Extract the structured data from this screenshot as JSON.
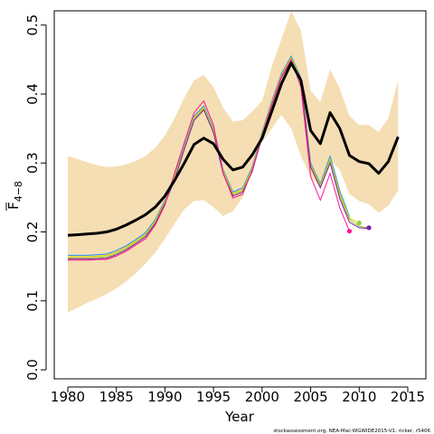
{
  "chart_data": {
    "type": "line",
    "xlabel": "Year",
    "ylabel_main": "F",
    "ylabel_sub": "4−8",
    "credit": "stockassessment.org, NEA-Mac-WGWIDE2015-V1: ricker, r5406",
    "xlim": [
      1980,
      2015
    ],
    "ylim": [
      0.0,
      0.52
    ],
    "x_ticks": [
      1980,
      1985,
      1990,
      1995,
      2000,
      2005,
      2010,
      2015
    ],
    "x_tick_labels": [
      "1980",
      "1985",
      "1990",
      "1995",
      "2000",
      "2005",
      "2010",
      "2015"
    ],
    "y_ticks": [
      0.0,
      0.1,
      0.2,
      0.3,
      0.4,
      0.5
    ],
    "y_tick_labels": [
      "0.0",
      "0.1",
      "0.2",
      "0.3",
      "0.4",
      "0.5"
    ],
    "grid": false,
    "colors": {
      "band": "#f5deb3",
      "main": "#000000",
      "retro": [
        "#1e90ff",
        "#e0d000",
        "#9acd32",
        "#7b1fa2",
        "#ff1493"
      ]
    },
    "x": [
      1980,
      1981,
      1982,
      1983,
      1984,
      1985,
      1986,
      1987,
      1988,
      1989,
      1990,
      1991,
      1992,
      1993,
      1994,
      1995,
      1996,
      1997,
      1998,
      1999,
      2000,
      2001,
      2002,
      2003,
      2004,
      2005,
      2006,
      2007,
      2008,
      2009,
      2010,
      2011,
      2012,
      2013,
      2014
    ],
    "band_lower": [
      0.083,
      0.09,
      0.097,
      0.103,
      0.11,
      0.118,
      0.128,
      0.14,
      0.154,
      0.17,
      0.19,
      0.212,
      0.233,
      0.245,
      0.246,
      0.236,
      0.223,
      0.23,
      0.25,
      0.29,
      0.33,
      0.35,
      0.37,
      0.35,
      0.31,
      0.28,
      0.265,
      0.305,
      0.29,
      0.255,
      0.245,
      0.24,
      0.228,
      0.238,
      0.26
    ],
    "band_upper": [
      0.31,
      0.306,
      0.301,
      0.297,
      0.294,
      0.295,
      0.298,
      0.303,
      0.31,
      0.322,
      0.34,
      0.365,
      0.395,
      0.42,
      0.428,
      0.41,
      0.38,
      0.36,
      0.362,
      0.375,
      0.39,
      0.44,
      0.48,
      0.52,
      0.492,
      0.405,
      0.388,
      0.436,
      0.408,
      0.368,
      0.355,
      0.355,
      0.345,
      0.365,
      0.42
    ],
    "series": [
      {
        "values": [
          0.195,
          0.196,
          0.197,
          0.198,
          0.2,
          0.204,
          0.21,
          0.217,
          0.225,
          0.236,
          0.252,
          0.275,
          0.3,
          0.327,
          0.336,
          0.328,
          0.305,
          0.29,
          0.294,
          0.312,
          0.336,
          0.375,
          0.415,
          0.445,
          0.42,
          0.347,
          0.328,
          0.373,
          0.35,
          0.311,
          0.302,
          0.299,
          0.285,
          0.302,
          0.338
        ]
      },
      {
        "values": [
          0.166,
          0.166,
          0.166,
          0.167,
          0.168,
          0.173,
          0.18,
          0.189,
          0.199,
          0.218,
          0.246,
          0.283,
          0.325,
          0.368,
          0.383,
          0.35,
          0.29,
          0.258,
          0.264,
          0.295,
          0.345,
          0.39,
          0.43,
          0.455,
          0.424,
          0.3,
          0.27,
          0.31,
          0.26,
          0.222,
          null,
          null,
          null,
          null,
          null
        ]
      },
      {
        "values": [
          0.164,
          0.164,
          0.164,
          0.165,
          0.166,
          0.171,
          0.178,
          0.187,
          0.197,
          0.216,
          0.244,
          0.281,
          0.323,
          0.366,
          0.381,
          0.348,
          0.288,
          0.256,
          0.262,
          0.293,
          0.343,
          0.388,
          0.428,
          0.453,
          0.422,
          0.298,
          0.268,
          0.306,
          0.256,
          0.22,
          0.213,
          null,
          null,
          null,
          null
        ]
      },
      {
        "values": [
          0.162,
          0.162,
          0.162,
          0.163,
          0.164,
          0.169,
          0.176,
          0.185,
          0.195,
          0.214,
          0.242,
          0.279,
          0.321,
          0.364,
          0.379,
          0.346,
          0.286,
          0.254,
          0.26,
          0.291,
          0.341,
          0.386,
          0.426,
          0.451,
          0.42,
          0.296,
          0.266,
          0.303,
          0.252,
          0.218,
          0.208,
          0.206,
          null,
          null,
          null
        ]
      },
      {
        "values": [
          0.161,
          0.161,
          0.161,
          0.161,
          0.162,
          0.167,
          0.174,
          0.183,
          0.193,
          0.212,
          0.241,
          0.276,
          0.32,
          0.362,
          0.377,
          0.344,
          0.284,
          0.252,
          0.258,
          0.288,
          0.339,
          0.384,
          0.424,
          0.449,
          0.418,
          0.294,
          0.264,
          0.3,
          0.248,
          0.214,
          0.206,
          0.205,
          null,
          null,
          null
        ]
      },
      {
        "values": [
          0.159,
          0.159,
          0.159,
          0.16,
          0.16,
          0.165,
          0.172,
          0.181,
          0.19,
          0.21,
          0.239,
          0.286,
          0.33,
          0.373,
          0.39,
          0.355,
          0.285,
          0.249,
          0.255,
          0.29,
          0.34,
          0.385,
          0.425,
          0.45,
          0.41,
          0.28,
          0.246,
          0.285,
          0.235,
          0.201,
          null,
          null,
          null,
          null,
          null
        ]
      }
    ],
    "endpoints": [
      {
        "x": 2009,
        "y": 0.201
      },
      {
        "x": 2010,
        "y": 0.213
      },
      {
        "x": 2011,
        "y": 0.206
      }
    ]
  }
}
